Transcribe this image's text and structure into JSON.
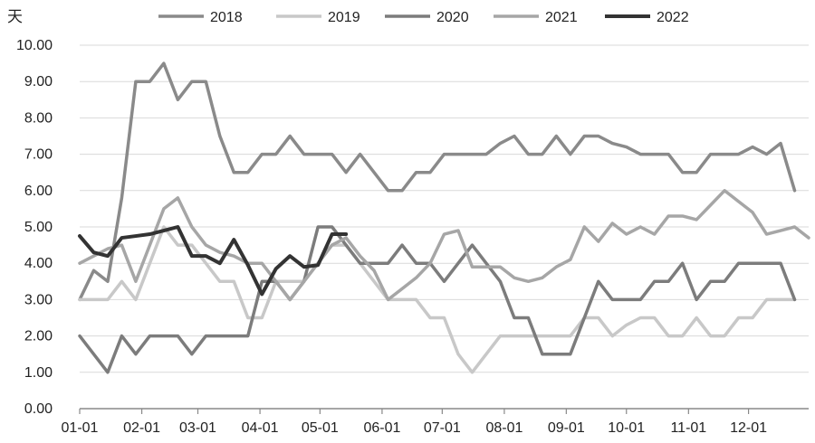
{
  "chart_data": {
    "type": "line",
    "unit_label": "天",
    "ylim": [
      0,
      10
    ],
    "yticks": [
      "0.00",
      "1.00",
      "2.00",
      "3.00",
      "4.00",
      "5.00",
      "6.00",
      "7.00",
      "8.00",
      "9.00",
      "10.00"
    ],
    "xlim": [
      0,
      52
    ],
    "xticks": [
      {
        "label": "01-01",
        "week": 0
      },
      {
        "label": "02-01",
        "week": 4.43
      },
      {
        "label": "03-01",
        "week": 8.43
      },
      {
        "label": "04-01",
        "week": 12.86
      },
      {
        "label": "05-01",
        "week": 17.14
      },
      {
        "label": "06-01",
        "week": 21.57
      },
      {
        "label": "07-01",
        "week": 25.86
      },
      {
        "label": "08-01",
        "week": 30.29
      },
      {
        "label": "09-01",
        "week": 34.71
      },
      {
        "label": "10-01",
        "week": 39.0
      },
      {
        "label": "11-01",
        "week": 43.43
      },
      {
        "label": "12-01",
        "week": 47.71
      }
    ],
    "grid": "horizontal",
    "legend_position": "top",
    "series": [
      {
        "name": "2018",
        "color": "#8a8a8a",
        "values": [
          3.0,
          3.8,
          3.5,
          5.8,
          9.0,
          9.0,
          9.5,
          8.5,
          9.0,
          9.0,
          7.5,
          6.5,
          6.5,
          7.0,
          7.0,
          7.5,
          7.0,
          7.0,
          7.0,
          6.5,
          7.0,
          6.5,
          6.0,
          6.0,
          6.5,
          6.5,
          7.0,
          7.0,
          7.0,
          7.0,
          7.3,
          7.5,
          7.0,
          7.0,
          7.5,
          7.0,
          7.5,
          7.5,
          7.3,
          7.2,
          7.0,
          7.0,
          7.0,
          6.5,
          6.5,
          7.0,
          7.0,
          7.0,
          7.2,
          7.0,
          7.3,
          6.0
        ]
      },
      {
        "name": "2019",
        "color": "#c8c8c8",
        "values": [
          3.0,
          3.0,
          3.0,
          3.5,
          3.0,
          4.0,
          5.0,
          4.5,
          4.5,
          4.0,
          3.5,
          3.5,
          2.5,
          2.5,
          3.5,
          3.5,
          3.5,
          4.0,
          4.5,
          4.5,
          4.0,
          3.5,
          3.0,
          3.0,
          3.0,
          2.5,
          2.5,
          1.5,
          1.0,
          1.5,
          2.0,
          2.0,
          2.0,
          2.0,
          2.0,
          2.0,
          2.5,
          2.5,
          2.0,
          2.3,
          2.5,
          2.5,
          2.0,
          2.0,
          2.5,
          2.0,
          2.0,
          2.5,
          2.5,
          3.0,
          3.0,
          3.0
        ]
      },
      {
        "name": "2020",
        "color": "#7c7c7c",
        "values": [
          2.0,
          1.5,
          1.0,
          2.0,
          1.5,
          2.0,
          2.0,
          2.0,
          1.5,
          2.0,
          2.0,
          2.0,
          2.0,
          3.5,
          3.5,
          3.0,
          3.5,
          5.0,
          5.0,
          4.5,
          4.0,
          4.0,
          4.0,
          4.5,
          4.0,
          4.0,
          3.5,
          4.0,
          4.5,
          4.0,
          3.5,
          2.5,
          2.5,
          1.5,
          1.5,
          1.5,
          2.5,
          3.5,
          3.0,
          3.0,
          3.0,
          3.5,
          3.5,
          4.0,
          3.0,
          3.5,
          3.5,
          4.0,
          4.0,
          4.0,
          4.0,
          3.0
        ]
      },
      {
        "name": "2021",
        "color": "#a6a6a6",
        "values": [
          4.0,
          4.2,
          4.4,
          4.5,
          3.5,
          4.5,
          5.5,
          5.8,
          5.0,
          4.5,
          4.3,
          4.2,
          4.0,
          4.0,
          3.5,
          3.0,
          3.5,
          4.0,
          4.5,
          4.7,
          4.2,
          3.8,
          3.0,
          3.3,
          3.6,
          4.0,
          4.8,
          4.9,
          3.9,
          3.9,
          3.9,
          3.6,
          3.5,
          3.6,
          3.9,
          4.1,
          5.0,
          4.6,
          5.1,
          4.8,
          5.0,
          4.8,
          5.3,
          5.3,
          5.2,
          5.6,
          6.0,
          5.7,
          5.4,
          4.8,
          4.9,
          5.0,
          4.7
        ]
      },
      {
        "name": "2022",
        "color": "#333333",
        "values": [
          4.75,
          4.3,
          4.2,
          4.7,
          4.75,
          4.8,
          4.9,
          5.0,
          4.2,
          4.2,
          4.0,
          4.65,
          3.95,
          3.15,
          3.85,
          4.2,
          3.9,
          3.95,
          4.8,
          4.8
        ]
      }
    ]
  }
}
